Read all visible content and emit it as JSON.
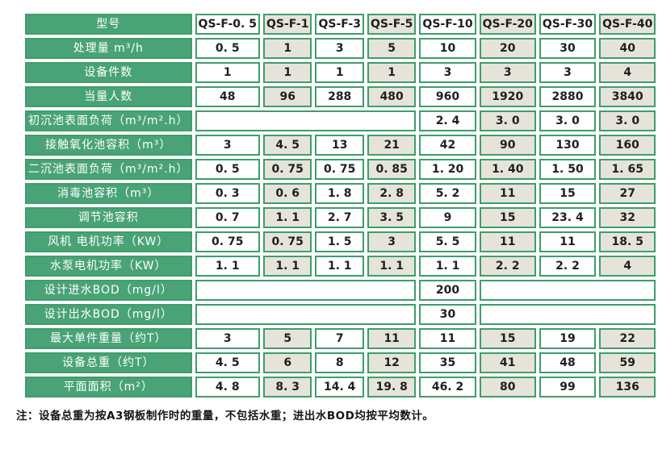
{
  "colors": {
    "header_green": "#49a377",
    "border_green": "#3f9d6b",
    "alt_cell_beige": "#e6e4da",
    "cell_white": "#ffffff",
    "text_dark": "#1f1f1f",
    "label_text": "#ffffff"
  },
  "table": {
    "corner_label": "型号",
    "models": [
      "QS-F-0. 5",
      "QS-F-1",
      "QS-F-3",
      "QS-F-5",
      "QS-F-10",
      "QS-F-20",
      "QS-F-30",
      "QS-F-40"
    ],
    "rows": [
      {
        "label": "处理量 m³/h",
        "layout": "full",
        "values": [
          "0. 5",
          "1",
          "3",
          "5",
          "10",
          "20",
          "30",
          "40"
        ]
      },
      {
        "label": "设备件数",
        "layout": "full",
        "values": [
          "1",
          "1",
          "1",
          "1",
          "3",
          "3",
          "3",
          "4"
        ]
      },
      {
        "label": "当量人数",
        "layout": "full",
        "values": [
          "48",
          "96",
          "288",
          "480",
          "960",
          "1920",
          "2880",
          "3840"
        ]
      },
      {
        "label": "初沉池表面负荷（m³/m².h）",
        "layout": "right4",
        "values": [
          "2. 4",
          "3. 0",
          "3. 0",
          "3. 0"
        ]
      },
      {
        "label": "接触氧化池容积（m³）",
        "layout": "full",
        "values": [
          "3",
          "4. 5",
          "13",
          "21",
          "42",
          "90",
          "130",
          "160"
        ]
      },
      {
        "label": "二沉池表面负荷（m³/m².h）",
        "layout": "full",
        "values": [
          "0. 5",
          "0. 75",
          "0. 75",
          "0. 85",
          "1. 20",
          "1. 40",
          "1. 50",
          "1. 65"
        ]
      },
      {
        "label": "消毒池容积（m³）",
        "layout": "full",
        "values": [
          "0. 3",
          "0. 6",
          "1. 8",
          "2. 8",
          "5. 2",
          "11",
          "15",
          "27"
        ]
      },
      {
        "label": "调节池容积",
        "layout": "full",
        "values": [
          "0. 7",
          "1. 1",
          "2. 7",
          "3. 5",
          "9",
          "15",
          "23. 4",
          "32"
        ]
      },
      {
        "label": "风机 电机功率（KW）",
        "layout": "full",
        "values": [
          "0. 75",
          "0. 75",
          "1. 5",
          "3",
          "5. 5",
          "11",
          "11",
          "18. 5"
        ]
      },
      {
        "label": "水泵电机功率（KW）",
        "layout": "full",
        "values": [
          "1. 1",
          "1. 1",
          "1. 1",
          "1. 1",
          "1. 1",
          "2. 2",
          "2. 2",
          "4"
        ]
      },
      {
        "label": "设计进水BOD（mg/l）",
        "layout": "single5",
        "values": [
          "200"
        ]
      },
      {
        "label": "设计出水BOD（mg/l）",
        "layout": "single5",
        "values": [
          "30"
        ]
      },
      {
        "label": "最大单件重量（约T）",
        "layout": "full",
        "values": [
          "3",
          "5",
          "7",
          "11",
          "11",
          "15",
          "19",
          "22"
        ]
      },
      {
        "label": "设备总重（约T）",
        "layout": "full",
        "values": [
          "4. 5",
          "6",
          "8",
          "12",
          "35",
          "41",
          "48",
          "59"
        ]
      },
      {
        "label": "平面面积（m²）",
        "layout": "full",
        "values": [
          "4. 8",
          "8. 3",
          "14. 4",
          "19. 8",
          "46. 2",
          "80",
          "99",
          "136"
        ]
      }
    ],
    "note": "注：设备总重为按A3钢板制作时的重量，不包括水重；进出水BOD均按平均数计。"
  }
}
